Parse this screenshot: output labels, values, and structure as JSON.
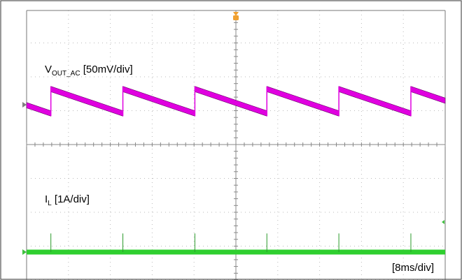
{
  "chart_data": {
    "type": "line",
    "time_scale": "[8ms/div]",
    "grid": true,
    "x_divisions": 10,
    "y_divisions": 8,
    "trigger_marker_color": "#f0a030",
    "series": [
      {
        "name_main": "V",
        "name_sub": "OUT_AC",
        "name_suffix": " [50mV/div]",
        "color": "#e000e0",
        "ground_marker_color": "#808080",
        "waveform": "sawtooth",
        "period_div": 1.72,
        "first_jump_div": 0.58,
        "ripple_pp_div": 0.72,
        "thickness_div": 0.16
      },
      {
        "name_main": "I",
        "name_sub": "L",
        "name_suffix": " [1A/div]",
        "color": "#2fcf2f",
        "ground_marker_color": "#40c040",
        "level_div": 0.0,
        "spike_height_div": 0.55,
        "spikes_at_div": [
          0.58,
          2.3,
          4.02,
          5.74,
          7.46,
          9.18
        ]
      }
    ]
  }
}
